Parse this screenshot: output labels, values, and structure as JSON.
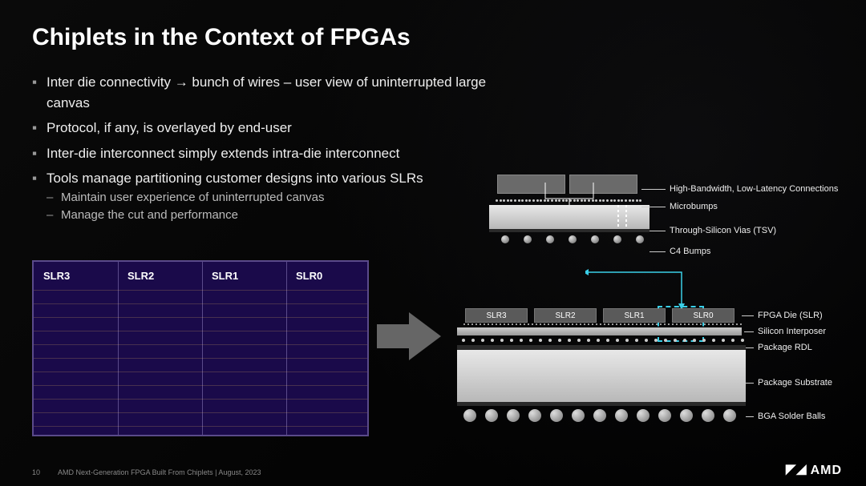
{
  "title": "Chiplets in the Context of FPGAs",
  "bullets": [
    "Inter die connectivity → bunch of wires – user view of uninterrupted large canvas",
    "Protocol, if any, is overlayed by end-user",
    "Inter-die interconnect simply extends intra-die interconnect",
    "Tools manage partitioning customer designs into various SLRs"
  ],
  "sub_bullets": [
    "Maintain user experience of uninterrupted canvas",
    "Manage the cut and performance"
  ],
  "slr_grid": {
    "labels": [
      "SLR3",
      "SLR2",
      "SLR1",
      "SLR0"
    ],
    "col_count": 4,
    "hline_count": 11,
    "bg_color": "#1a0a4a",
    "border_color": "#5a4a8a"
  },
  "arrow": {
    "color": "#666"
  },
  "zoom_labels": {
    "hbw": "High-Bandwidth, Low-Latency Connections",
    "microbumps": "Microbumps",
    "tsv": "Through-Silicon Vias (TSV)",
    "c4": "C4 Bumps"
  },
  "stack_labels": {
    "fpga_die": "FPGA Die (SLR)",
    "interposer": "Silicon Interposer",
    "rdl": "Package RDL",
    "substrate": "Package Substrate",
    "bga": "BGA Solder Balls"
  },
  "stack_dies": [
    "SLR3",
    "SLR2",
    "SLR1",
    "SLR0"
  ],
  "colors": {
    "die": "#6a6a6a",
    "silver": "#d0d0d0",
    "dark": "#2a2a2a",
    "dash": "#3acfe8",
    "bump": "#999"
  },
  "footer": {
    "page": "10",
    "text": "AMD Next-Generation FPGA Built From Chiplets   |   August, 2023"
  },
  "logo": "AMD"
}
